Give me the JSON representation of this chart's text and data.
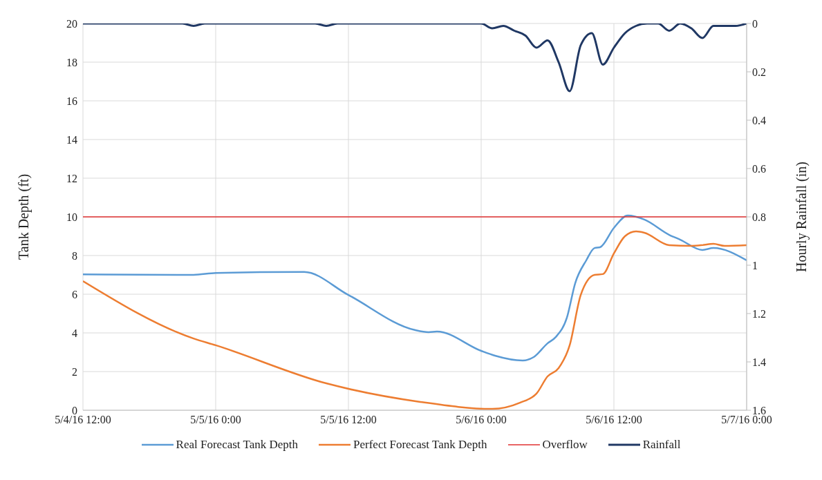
{
  "chart_data": {
    "type": "line",
    "ylabel": "Tank Depth (ft)",
    "y2label": "Hourly Rainfall (in)",
    "xlim": [
      "--05-04T12:00",
      "--05-07T00:00"
    ],
    "xticks": [
      {
        "value": "--05-04T12:00",
        "label": "5/4/16 12:00"
      },
      {
        "value": "--05-05T00:00",
        "label": "5/5/16 0:00"
      },
      {
        "value": "--05-05T12:00",
        "label": "5/5/16 12:00"
      },
      {
        "value": "--05-06T00:00",
        "label": "5/6/16 0:00"
      },
      {
        "value": "--05-06T12:00",
        "label": "5/6/16 12:00"
      },
      {
        "value": "--05-07T00:00",
        "label": "5/7/16 0:00"
      }
    ],
    "ylim": [
      0,
      20
    ],
    "yticks": [
      0,
      2,
      4,
      6,
      8,
      10,
      12,
      14,
      16,
      18,
      20
    ],
    "y2lim": [
      1.6,
      0
    ],
    "y2ticks": [
      0,
      0.2,
      0.4,
      0.6,
      0.8,
      1,
      1.2,
      1.4,
      1.6
    ],
    "grid": true,
    "legend": "bottom",
    "marker": "none",
    "line_style": "solid",
    "series": [
      {
        "name": "Real Forecast Tank Depth",
        "color": "#5b9bd5",
        "x": [
          "--05-04T12:00",
          "--05-04T22:00",
          "--05-05T00:00",
          "--05-05T08:00",
          "--05-05T12:00",
          "--05-05T18:00",
          "--05-05T19:15",
          "--05-05T20:00",
          "--05-06T00:00",
          "--05-06T01:15",
          "--05-06T03:45",
          "--05-06T04:45",
          "--05-06T06:00",
          "--05-06T06:45",
          "--05-06T07:45",
          "--05-06T08:30",
          "--05-06T09:30",
          "--05-06T10:15",
          "--05-06T10:45",
          "--05-06T12:00",
          "--05-06T13:15",
          "--05-06T14:45",
          "--05-06T17:00",
          "--05-06T18:00",
          "--05-06T20:00",
          "--05-06T21:00",
          "--05-07T00:00"
        ],
        "values": [
          7.03,
          7.0,
          7.1,
          7.15,
          5.96,
          4.15,
          4.04,
          4.07,
          3.07,
          2.82,
          2.57,
          2.75,
          3.46,
          3.79,
          4.79,
          6.57,
          7.75,
          8.39,
          8.43,
          9.43,
          10.07,
          9.86,
          9.07,
          8.82,
          8.29,
          8.39,
          7.75
        ]
      },
      {
        "name": "Perfect Forecast Tank Depth",
        "color": "#ed7d31",
        "x": [
          "--05-04T12:00",
          "--05-04T22:00",
          "--05-05T00:00",
          "--05-05T10:00",
          "--05-05T18:30",
          "--05-06T01:00",
          "--05-06T03:30",
          "--05-06T05:00",
          "--05-06T06:00",
          "--05-06T07:00",
          "--05-06T08:00",
          "--05-06T09:00",
          "--05-06T10:15",
          "--05-06T11:00",
          "--05-06T12:00",
          "--05-06T13:00",
          "--05-06T14:00",
          "--05-06T14:45",
          "--05-06T17:00",
          "--05-06T19:00",
          "--05-06T20:00",
          "--05-06T21:00",
          "--05-06T22:00",
          "--05-07T00:00"
        ],
        "values": [
          6.68,
          3.71,
          3.36,
          1.39,
          0.43,
          0.07,
          0.39,
          0.86,
          1.75,
          2.18,
          3.36,
          5.96,
          7.0,
          7.04,
          8.11,
          9.0,
          9.25,
          9.18,
          8.54,
          8.5,
          8.54,
          8.61,
          8.5,
          8.54
        ]
      },
      {
        "name": "Overflow",
        "color": "#e03030",
        "x": [
          "--05-04T12:00",
          "--05-07T00:00"
        ],
        "values": [
          10,
          10
        ]
      },
      {
        "name": "Rainfall",
        "color": "#203864",
        "axis": "y2",
        "x": [
          "--05-04T12:00",
          "--05-04T21:00",
          "--05-04T22:00",
          "--05-04T23:00",
          "--05-05T09:00",
          "--05-05T10:00",
          "--05-05T11:00",
          "--05-05T23:00",
          "--05-06T00:00",
          "--05-06T01:00",
          "--05-06T02:00",
          "--05-06T03:00",
          "--05-06T04:00",
          "--05-06T05:00",
          "--05-06T06:00",
          "--05-06T07:00",
          "--05-06T08:00",
          "--05-06T09:00",
          "--05-06T10:00",
          "--05-06T11:00",
          "--05-06T12:00",
          "--05-06T13:00",
          "--05-06T14:00",
          "--05-06T15:00",
          "--05-06T16:00",
          "--05-06T17:00",
          "--05-06T18:00",
          "--05-06T19:00",
          "--05-06T20:00",
          "--05-06T21:00",
          "--05-06T22:00",
          "--05-06T23:00",
          "--05-07T00:00"
        ],
        "values": [
          0,
          0,
          0.01,
          0,
          0,
          0.01,
          0,
          0,
          0,
          0.02,
          0.01,
          0.03,
          0.05,
          0.1,
          0.07,
          0.16,
          0.28,
          0.09,
          0.04,
          0.17,
          0.1,
          0.04,
          0.01,
          0,
          0,
          0.03,
          0,
          0.02,
          0.06,
          0.01,
          0.01,
          0.01,
          0
        ]
      }
    ]
  }
}
